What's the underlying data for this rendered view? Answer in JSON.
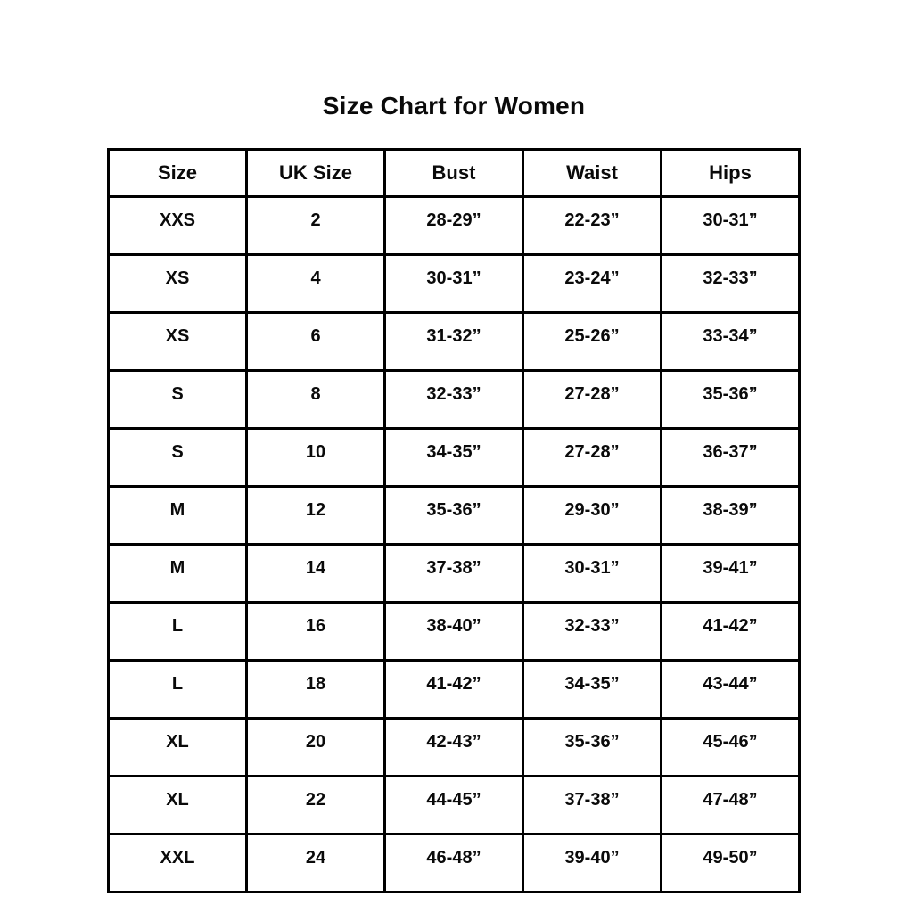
{
  "chart_data": {
    "type": "table",
    "title": "Size Chart for Women",
    "columns": [
      "Size",
      "UK Size",
      "Bust",
      "Waist",
      "Hips"
    ],
    "rows": [
      [
        "XXS",
        "2",
        "28-29”",
        "22-23”",
        "30-31”"
      ],
      [
        "XS",
        "4",
        "30-31”",
        "23-24”",
        "32-33”"
      ],
      [
        "XS",
        "6",
        "31-32”",
        "25-26”",
        "33-34”"
      ],
      [
        "S",
        "8",
        "32-33”",
        "27-28”",
        "35-36”"
      ],
      [
        "S",
        "10",
        "34-35”",
        "27-28”",
        "36-37”"
      ],
      [
        "M",
        "12",
        "35-36”",
        "29-30”",
        "38-39”"
      ],
      [
        "M",
        "14",
        "37-38”",
        "30-31”",
        "39-41”"
      ],
      [
        "L",
        "16",
        "38-40”",
        "32-33”",
        "41-42”"
      ],
      [
        "L",
        "18",
        "41-42”",
        "34-35”",
        "43-44”"
      ],
      [
        "XL",
        "20",
        "42-43”",
        "35-36”",
        "45-46”"
      ],
      [
        "XL",
        "22",
        "44-45”",
        "37-38”",
        "47-48”"
      ],
      [
        "XXL",
        "24",
        "46-48”",
        "39-40”",
        "49-50”"
      ]
    ]
  }
}
